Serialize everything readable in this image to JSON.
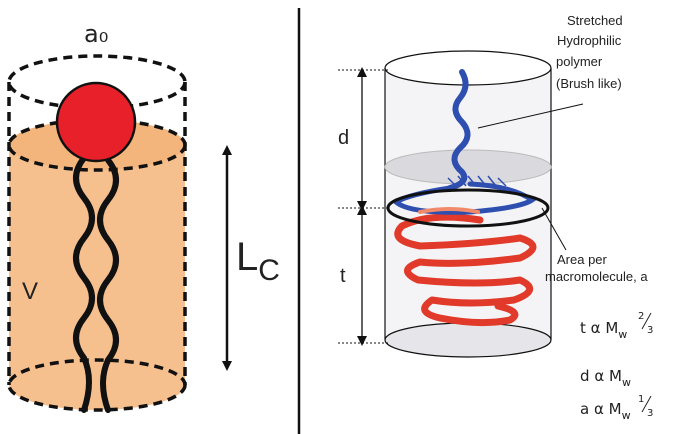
{
  "left_panel": {
    "head_area_label": "a₀",
    "volume_label": "V",
    "length_label_main": "L",
    "length_label_sub": "C"
  },
  "right_panel": {
    "top_annotation": [
      "Stretched",
      "Hydrophilic",
      "polymer",
      "(Brush like)"
    ],
    "brush_height_label": "d",
    "core_thickness_label": "t",
    "area_annotation": [
      "Area per",
      "macromolecule, a"
    ],
    "scaling_relations": [
      {
        "lhs": "t",
        "rel": "α",
        "base": "M",
        "sub": "w",
        "num": "2",
        "den": "3"
      },
      {
        "lhs": "d",
        "rel": "α",
        "base": "M",
        "sub": "w",
        "num": "",
        "den": ""
      },
      {
        "lhs": "a",
        "rel": "α",
        "base": "M",
        "sub": "w",
        "num": "1",
        "den": "3"
      }
    ]
  },
  "colors": {
    "head": "#e8202a",
    "tail_body": "#f6c08e",
    "brush_chain": "#2e4fb0",
    "core_chain": "#e23a2a",
    "outline": "#111111"
  }
}
